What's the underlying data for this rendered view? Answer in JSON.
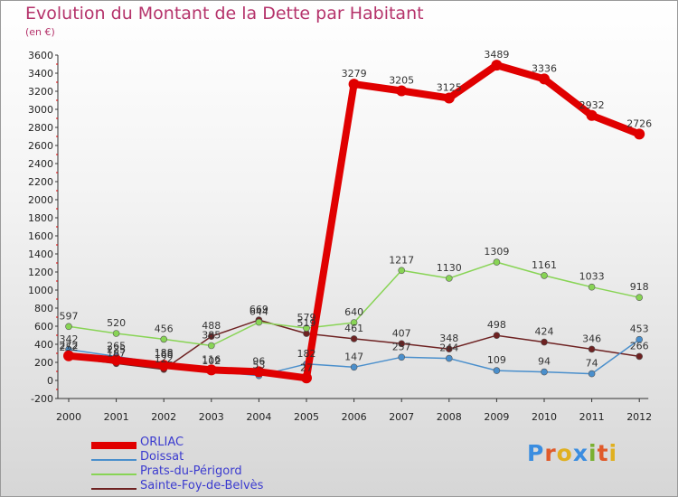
{
  "title": "Evolution du Montant de la Dette par Habitant",
  "subtitle": "(en €)",
  "logo": {
    "text": "Proxiti",
    "letter_colors": [
      "#3a8de0",
      "#e05a2a",
      "#e0b020",
      "#3a8de0",
      "#7ab030",
      "#e05a2a",
      "#e0b020"
    ]
  },
  "chart_data": {
    "type": "line",
    "x": [
      "2000",
      "2001",
      "2002",
      "2003",
      "2004",
      "2005",
      "2006",
      "2007",
      "2008",
      "2009",
      "2010",
      "2011",
      "2012"
    ],
    "ylim": [
      -200,
      3600
    ],
    "yticks": [
      "-200",
      "0",
      "200",
      "400",
      "600",
      "800",
      "1000",
      "1200",
      "1400",
      "1600",
      "1800",
      "2000",
      "2200",
      "2400",
      "2600",
      "2800",
      "3000",
      "3200",
      "3400",
      "3600"
    ],
    "grid": false,
    "legend_position": "bottom-left",
    "series": [
      {
        "name": "ORLIAC",
        "color": "#e00000",
        "values": [
          272,
          225,
          168,
          116,
          96,
          27,
          3279,
          3205,
          3125,
          3489,
          3336,
          2932,
          2726
        ],
        "labels": [
          "272",
          "225",
          "168",
          "116",
          "96",
          "27",
          "3279",
          "3205",
          "3125",
          "3489",
          "3336",
          "2932",
          "2726"
        ]
      },
      {
        "name": "Doissat",
        "color": "#4a8fcc",
        "values": [
          342,
          265,
          188,
          102,
          53,
          182,
          147,
          257,
          244,
          109,
          94,
          74,
          453
        ],
        "labels": [
          "342",
          "265",
          "188",
          "102",
          "53",
          "182",
          "147",
          "257",
          "244",
          "109",
          "94",
          "74",
          "453"
        ]
      },
      {
        "name": "Prats-du-Périgord",
        "color": "#88d455",
        "values": [
          597,
          520,
          456,
          385,
          644,
          579,
          640,
          1217,
          1130,
          1309,
          1161,
          1033,
          918
        ],
        "labels": [
          "597",
          "520",
          "456",
          "385",
          "644",
          "579",
          "640",
          "1217",
          "1130",
          "1309",
          "1161",
          "1033",
          "918"
        ]
      },
      {
        "name": "Sainte-Foy-de-Belvès",
        "color": "#6e2222",
        "values": [
          252,
          187,
          122,
          488,
          669,
          519,
          461,
          407,
          348,
          498,
          424,
          346,
          266
        ],
        "labels": [
          "252",
          "187",
          "122",
          "488",
          "669",
          "519",
          "461",
          "407",
          "348",
          "498",
          "424",
          "346",
          "266"
        ]
      }
    ]
  }
}
